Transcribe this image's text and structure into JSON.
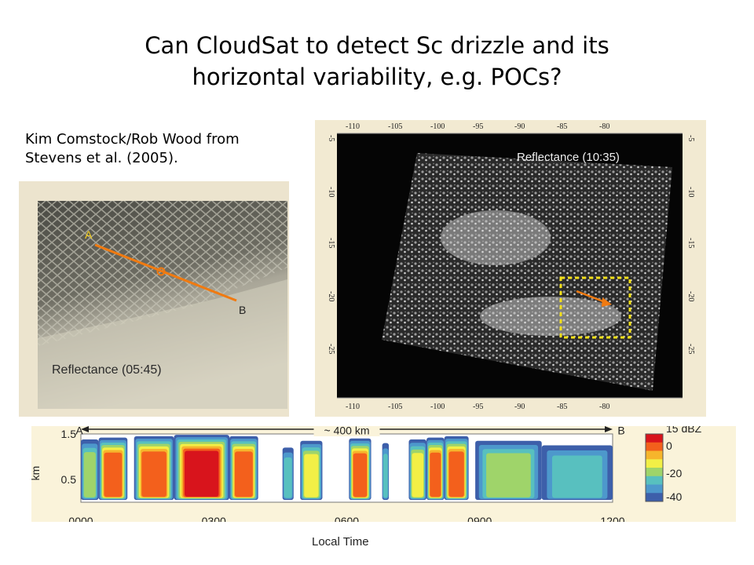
{
  "slide": {
    "title_line1": "Can CloudSat to detect Sc drizzle and its",
    "title_line2": "horizontal variability, e.g. POCs?",
    "credit_line1": "Kim Comstock/Rob Wood from",
    "credit_line2": "Stevens et al. (2005)."
  },
  "left_image": {
    "point_a": "A",
    "point_b": "B",
    "caption": "Reflectance (05:45)",
    "colors": {
      "track": "#f07a10"
    }
  },
  "right_image": {
    "caption": "Reflectance (10:35)",
    "top_ticks": [
      "-110",
      "-105",
      "-100",
      "-95",
      "-90",
      "-85",
      "-80"
    ],
    "bottom_ticks": [
      "-110",
      "-105",
      "-100",
      "-95",
      "-90",
      "-85",
      "-80"
    ],
    "left_ticks": [
      "-5",
      "-10",
      "-15",
      "-20",
      "-25"
    ],
    "right_ticks": [
      "-5",
      "-10",
      "-15",
      "-20",
      "-25"
    ],
    "colors": {
      "box": "#f4e01a",
      "arrow": "#f07a10"
    }
  },
  "chart_data": {
    "type": "heatmap",
    "title": "",
    "xlabel": "Local Time",
    "ylabel": "km",
    "x_ticks": [
      "0000",
      "0300",
      "0600",
      "0900",
      "1200"
    ],
    "y_ticks": [
      "1.5",
      "0.5"
    ],
    "ylim": [
      0,
      1.5
    ],
    "transect_start": "A",
    "transect_end": "B",
    "transect_label": "~ 400 km",
    "colorbar": {
      "labels": [
        "15 dBZ",
        "0",
        "-20",
        "-40"
      ],
      "colors": [
        "#d8141c",
        "#f3601c",
        "#f6b52c",
        "#f2ef46",
        "#9fd46a",
        "#58c0bf",
        "#4d98cc",
        "#3d5faa"
      ]
    },
    "segments": [
      {
        "start": 0.0,
        "end": 0.4,
        "top": 1.38,
        "peak_dbz": -15
      },
      {
        "start": 0.4,
        "end": 1.05,
        "top": 1.42,
        "peak_dbz": 5
      },
      {
        "start": 1.2,
        "end": 2.1,
        "top": 1.45,
        "peak_dbz": 8
      },
      {
        "start": 2.1,
        "end": 3.35,
        "top": 1.48,
        "peak_dbz": 12
      },
      {
        "start": 3.35,
        "end": 4.0,
        "top": 1.45,
        "peak_dbz": 8
      },
      {
        "start": 4.55,
        "end": 4.8,
        "top": 1.2,
        "peak_dbz": -22
      },
      {
        "start": 4.95,
        "end": 5.45,
        "top": 1.35,
        "peak_dbz": -10
      },
      {
        "start": 6.05,
        "end": 6.55,
        "top": 1.4,
        "peak_dbz": 4
      },
      {
        "start": 6.8,
        "end": 6.95,
        "top": 1.3,
        "peak_dbz": -25
      },
      {
        "start": 7.4,
        "end": 7.8,
        "top": 1.38,
        "peak_dbz": -12
      },
      {
        "start": 7.8,
        "end": 8.2,
        "top": 1.42,
        "peak_dbz": 6
      },
      {
        "start": 8.2,
        "end": 8.75,
        "top": 1.45,
        "peak_dbz": 10
      },
      {
        "start": 8.9,
        "end": 10.4,
        "top": 1.35,
        "peak_dbz": -20
      },
      {
        "start": 10.4,
        "end": 12.0,
        "top": 1.25,
        "peak_dbz": -28
      }
    ]
  }
}
